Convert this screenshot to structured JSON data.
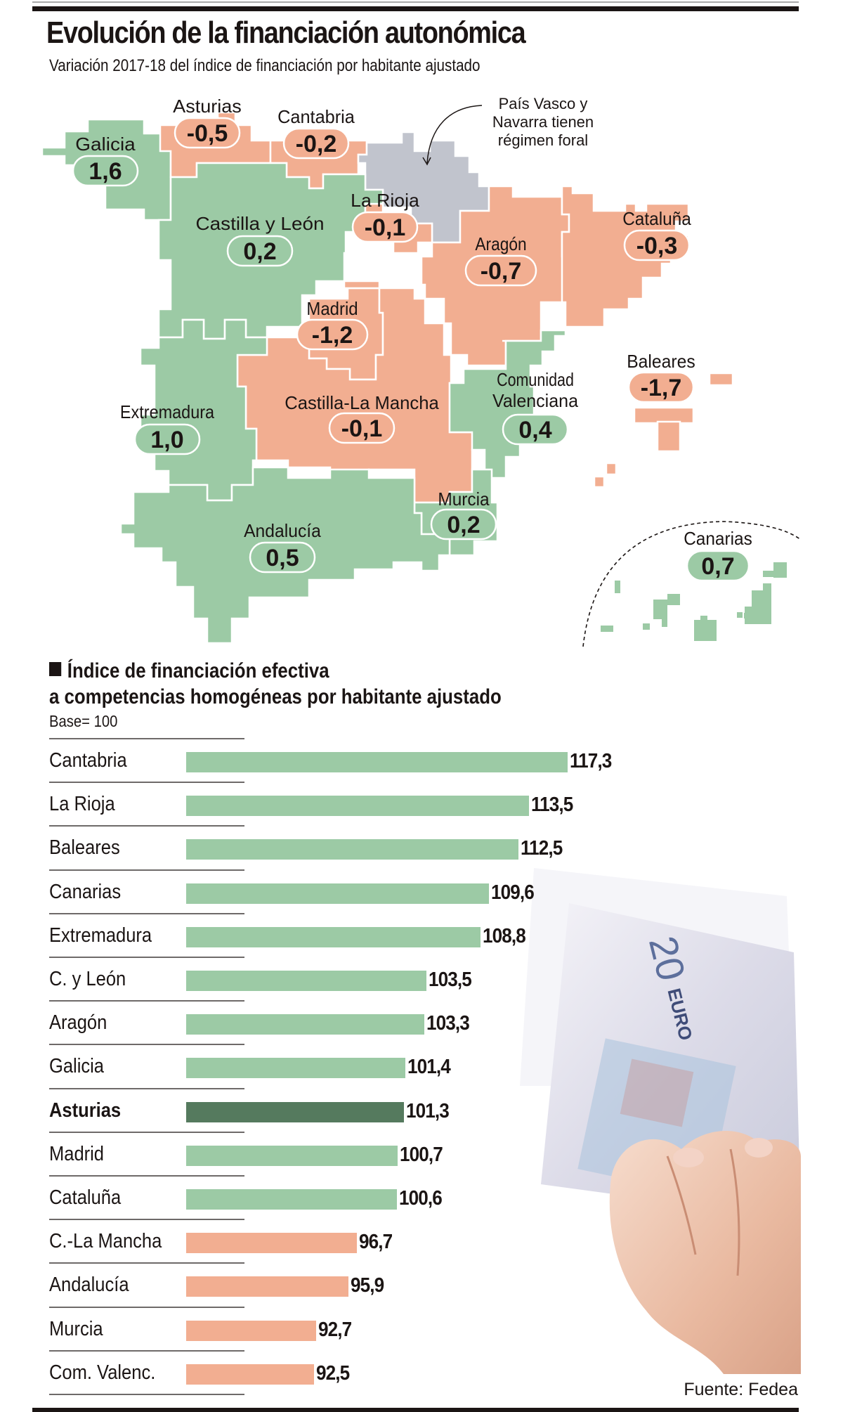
{
  "header": {
    "title": "Evolución de la financiación autonómica",
    "subtitle": "Variación 2017-18 del índice de financiación por habitante ajustado"
  },
  "colors": {
    "positive": "#9ccaa5",
    "negative": "#f2ae91",
    "foral": "#c1c4cd",
    "highlight": "#557a5e",
    "text": "#1b1514"
  },
  "map": {
    "regions": [
      {
        "name": "Galicia",
        "value": "1,6",
        "sign": "positive"
      },
      {
        "name": "Asturias",
        "value": "-0,5",
        "sign": "negative"
      },
      {
        "name": "Cantabria",
        "value": "-0,2",
        "sign": "negative"
      },
      {
        "name": "La Rioja",
        "value": "-0,1",
        "sign": "negative"
      },
      {
        "name": "Castilla y León",
        "value": "0,2",
        "sign": "positive"
      },
      {
        "name": "Aragón",
        "value": "-0,7",
        "sign": "negative"
      },
      {
        "name": "Cataluña",
        "value": "-0,3",
        "sign": "negative"
      },
      {
        "name": "Madrid",
        "value": "-1,2",
        "sign": "negative"
      },
      {
        "name": "Baleares",
        "value": "-1,7",
        "sign": "negative"
      },
      {
        "name": "Comunidad",
        "name2": "Valenciana",
        "value": "0,4",
        "sign": "positive"
      },
      {
        "name": "Extremadura",
        "value": "1,0",
        "sign": "positive"
      },
      {
        "name": "Castilla-La Mancha",
        "value": "-0,1",
        "sign": "negative"
      },
      {
        "name": "Murcia",
        "value": "0,2",
        "sign": "positive"
      },
      {
        "name": "Andalucía",
        "value": "0,5",
        "sign": "positive"
      },
      {
        "name": "Canarias",
        "value": "0,7",
        "sign": "positive"
      }
    ],
    "foral_note": [
      "País Vasco y",
      "Navarra tienen",
      "régimen foral"
    ]
  },
  "photo": {
    "bill_denomination": "20",
    "bill_currency": "EURO"
  },
  "chart_data": {
    "type": "bar",
    "orientation": "horizontal",
    "title": "Índice de financiación efectiva",
    "title_line2": "a competencias homogéneas por habitante ajustado",
    "subtitle": "Base= 100",
    "baseline": 100,
    "categories": [
      "Cantabria",
      "La Rioja",
      "Baleares",
      "Canarias",
      "Extremadura",
      "C. y León",
      "Aragón",
      "Galicia",
      "Asturias",
      "Madrid",
      "Cataluña",
      "C.-La Mancha",
      "Andalucía",
      "Murcia",
      "Com. Valenc."
    ],
    "values": [
      117.3,
      113.5,
      112.5,
      109.6,
      108.8,
      103.5,
      103.3,
      101.4,
      101.3,
      100.7,
      100.6,
      96.7,
      95.9,
      92.7,
      92.5
    ],
    "value_labels": [
      "117,3",
      "113,5",
      "112,5",
      "109,6",
      "108,8",
      "103,5",
      "103,3",
      "101,4",
      "101,3",
      "100,7",
      "100,6",
      "96,7",
      "95,9",
      "92,7",
      "92,5"
    ],
    "highlight": "Asturias",
    "xlim": [
      80,
      117.3
    ]
  },
  "source": "Fuente: Fedea"
}
